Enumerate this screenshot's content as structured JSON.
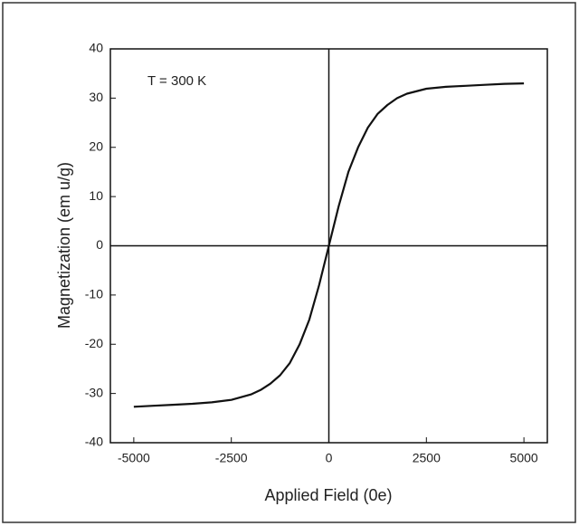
{
  "chart_data": {
    "type": "line",
    "annotation": "T = 300 K",
    "xlabel": "Applied Field (0e)",
    "ylabel": "Magnetization (em u/g)",
    "x": [
      -5000,
      -4500,
      -4000,
      -3500,
      -3000,
      -2500,
      -2000,
      -1750,
      -1500,
      -1250,
      -1000,
      -750,
      -500,
      -250,
      0,
      250,
      500,
      750,
      1000,
      1250,
      1500,
      1750,
      2000,
      2500,
      3000,
      3500,
      4000,
      4500,
      5000
    ],
    "values": [
      -32.7,
      -32.5,
      -32.3,
      -32.1,
      -31.8,
      -31.3,
      -30.2,
      -29.3,
      -28,
      -26.3,
      -23.8,
      -20,
      -15,
      -8,
      0,
      8,
      15,
      20,
      24,
      26.8,
      28.6,
      30,
      30.9,
      31.9,
      32.3,
      32.5,
      32.7,
      32.9,
      33
    ],
    "color": "#111111",
    "xlim": [
      -5600,
      5600
    ],
    "xticks": [
      -5000,
      -2500,
      0,
      2500,
      5000
    ],
    "ylim": [
      -40,
      40
    ],
    "yticks": [
      -40,
      -30,
      -20,
      -10,
      0,
      10,
      20,
      30,
      40
    ],
    "grid": false
  }
}
